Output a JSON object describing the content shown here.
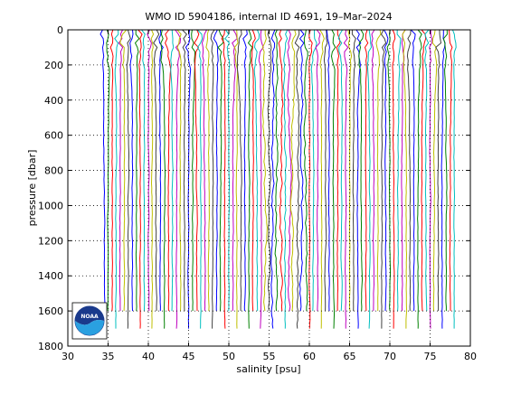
{
  "chart_data": {
    "type": "line",
    "title": "WMO ID 5904186, internal ID 4691, 19–Mar–2024",
    "xlabel": "salinity [psu]",
    "ylabel": "pressure [dbar]",
    "xlim": [
      30,
      80
    ],
    "ylim": [
      0,
      1800
    ],
    "y_reversed": true,
    "grid": true,
    "x_ticks": [
      "30",
      "35",
      "40",
      "45",
      "50",
      "55",
      "60",
      "65",
      "70",
      "75",
      "80"
    ],
    "y_ticks": [
      "0",
      "200",
      "400",
      "600",
      "800",
      "1000",
      "1200",
      "1400",
      "1600",
      "1800"
    ],
    "profile_offset_step_psu": 0.5,
    "profile_first_salinity_psu": 34.5,
    "profile_last_salinity_psu": 78.0,
    "profile_max_pressure_dbar": [
      1600,
      1700
    ],
    "series_colors": [
      "#0000ff",
      "#008000",
      "#ff0000",
      "#00bfbf",
      "#bf00bf",
      "#bfbf00",
      "#404040"
    ],
    "logo": {
      "text": "NOAA",
      "position": "bottom-left"
    }
  }
}
